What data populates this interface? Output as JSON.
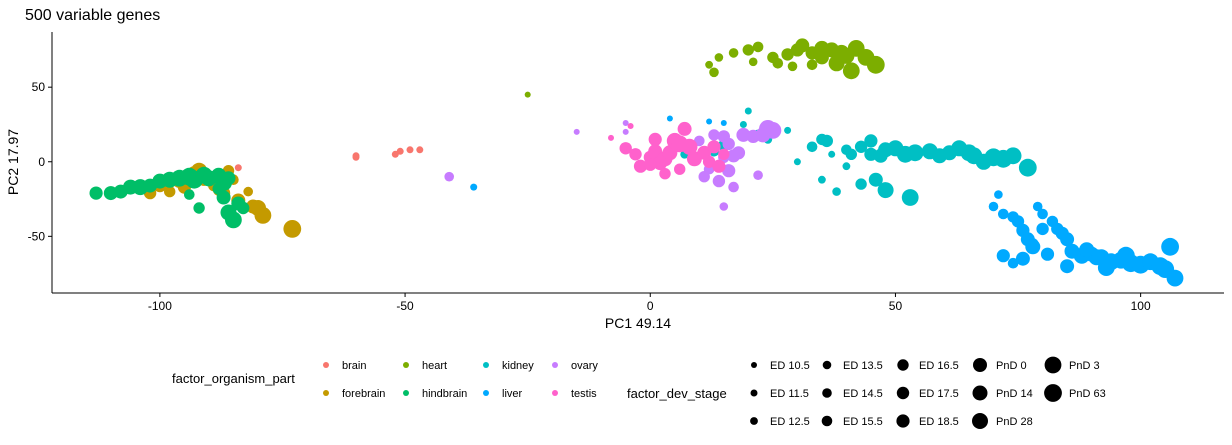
{
  "chart_data": {
    "type": "scatter",
    "title": "500  variable genes",
    "xlabel": "PC1 49.14",
    "ylabel": "PC2 17.97",
    "xlim": [
      -122,
      117
    ],
    "ylim": [
      -88,
      87
    ],
    "xticks": [
      -100,
      -50,
      0,
      50,
      100
    ],
    "yticks": [
      -50,
      0,
      50
    ],
    "xtick_labels": [
      "-100",
      "-50",
      "0",
      "50",
      "100"
    ],
    "ytick_labels": [
      "-50",
      "0",
      "50"
    ],
    "grid": false,
    "color_legend": {
      "title": "factor_organism_part",
      "entries": [
        {
          "name": "brain",
          "color": "#F8766D"
        },
        {
          "name": "forebrain",
          "color": "#C49A00"
        },
        {
          "name": "heart",
          "color": "#7CAE00"
        },
        {
          "name": "hindbrain",
          "color": "#00BE67"
        },
        {
          "name": "kidney",
          "color": "#00BFC4"
        },
        {
          "name": "liver",
          "color": "#00A9FF"
        },
        {
          "name": "ovary",
          "color": "#C77CFF"
        },
        {
          "name": "testis",
          "color": "#FF61CC"
        }
      ]
    },
    "size_legend": {
      "title": "factor_dev_stage",
      "entries": [
        "ED 10.5",
        "ED 11.5",
        "ED 12.5",
        "ED 13.5",
        "ED 14.5",
        "ED 15.5",
        "ED 16.5",
        "ED 17.5",
        "ED 18.5",
        "PnD 0",
        "PnD 14",
        "PnD 28",
        "PnD 3",
        "PnD 63"
      ]
    },
    "series": [
      {
        "name": "brain",
        "points": [
          [
            -60,
            3,
            1
          ],
          [
            -60,
            4,
            1
          ],
          [
            -52,
            5,
            1
          ],
          [
            -51,
            7,
            1
          ],
          [
            -49,
            8,
            1
          ],
          [
            -47,
            8,
            1
          ],
          [
            -84,
            -4,
            1
          ]
        ]
      },
      {
        "name": "heart",
        "points": [
          [
            -25,
            45,
            0
          ],
          [
            12,
            65,
            2
          ],
          [
            13,
            60,
            4
          ],
          [
            14,
            70,
            3
          ],
          [
            17,
            73,
            4
          ],
          [
            20,
            75,
            6
          ],
          [
            22,
            77,
            5
          ],
          [
            25,
            70,
            6
          ],
          [
            28,
            72,
            7
          ],
          [
            30,
            75,
            8
          ],
          [
            31,
            78,
            9
          ],
          [
            33,
            73,
            8
          ],
          [
            35,
            70,
            9
          ],
          [
            37,
            75,
            10
          ],
          [
            39,
            73,
            11
          ],
          [
            40,
            71,
            11
          ],
          [
            42,
            76,
            12
          ],
          [
            44,
            70,
            12
          ],
          [
            46,
            65,
            13
          ],
          [
            33,
            65,
            5
          ],
          [
            29,
            64,
            4
          ],
          [
            21,
            67,
            3
          ],
          [
            26,
            66,
            5
          ],
          [
            41,
            61,
            12
          ],
          [
            38,
            66,
            11
          ],
          [
            35,
            76,
            10
          ]
        ]
      },
      {
        "name": "forebrain",
        "points": [
          [
            -98,
            -20,
            6
          ],
          [
            -95,
            -17,
            8
          ],
          [
            -93,
            -8,
            10
          ],
          [
            -91,
            -12,
            7
          ],
          [
            -89,
            -16,
            6
          ],
          [
            -87,
            -21,
            8
          ],
          [
            -85,
            -12,
            5
          ],
          [
            -84,
            -26,
            9
          ],
          [
            -82,
            -20,
            4
          ],
          [
            -81,
            -30,
            9
          ],
          [
            -80,
            -31,
            11
          ],
          [
            -79,
            -36,
            12
          ],
          [
            -73,
            -45,
            13
          ],
          [
            -110,
            -20,
            5
          ],
          [
            -104,
            -17,
            6
          ],
          [
            -102,
            -21,
            7
          ],
          [
            -100,
            -16,
            8
          ],
          [
            -96,
            -13,
            9
          ],
          [
            -92,
            -6,
            11
          ],
          [
            -88,
            -19,
            6
          ],
          [
            -86,
            -6,
            6
          ]
        ]
      },
      {
        "name": "hindbrain",
        "points": [
          [
            -113,
            -21,
            8
          ],
          [
            -110,
            -21,
            9
          ],
          [
            -108,
            -20,
            9
          ],
          [
            -106,
            -17,
            10
          ],
          [
            -104,
            -17,
            11
          ],
          [
            -102,
            -16,
            9
          ],
          [
            -100,
            -13,
            10
          ],
          [
            -98,
            -12,
            11
          ],
          [
            -96,
            -11,
            12
          ],
          [
            -94,
            -10,
            13
          ],
          [
            -93,
            -12,
            13
          ],
          [
            -91,
            -9,
            12
          ],
          [
            -90,
            -11,
            11
          ],
          [
            -88,
            -9,
            10
          ],
          [
            -87,
            -14,
            12
          ],
          [
            -87,
            -24,
            9
          ],
          [
            -86,
            -34,
            11
          ],
          [
            -85,
            -39,
            12
          ],
          [
            -84,
            -28,
            9
          ],
          [
            -83,
            -31,
            7
          ],
          [
            -92,
            -31,
            6
          ],
          [
            -94,
            -22,
            5
          ],
          [
            -90,
            -12,
            8
          ],
          [
            -88,
            -18,
            7
          ],
          [
            -86,
            -11,
            9
          ]
        ]
      },
      {
        "name": "kidney",
        "points": [
          [
            7,
            8,
            3
          ],
          [
            7,
            5,
            3
          ],
          [
            11,
            5,
            4
          ],
          [
            13,
            7,
            5
          ],
          [
            15,
            11,
            6
          ],
          [
            19,
            25,
            1
          ],
          [
            20,
            34,
            1
          ],
          [
            22,
            18,
            5
          ],
          [
            24,
            15,
            3
          ],
          [
            28,
            21,
            1
          ],
          [
            30,
            0,
            1
          ],
          [
            33,
            10,
            5
          ],
          [
            35,
            15,
            6
          ],
          [
            36,
            14,
            7
          ],
          [
            37,
            5,
            1
          ],
          [
            40,
            8,
            5
          ],
          [
            41,
            5,
            6
          ],
          [
            43,
            10,
            7
          ],
          [
            45,
            14,
            8
          ],
          [
            45,
            5,
            8
          ],
          [
            47,
            4,
            9
          ],
          [
            48,
            8,
            10
          ],
          [
            50,
            9,
            11
          ],
          [
            52,
            5,
            12
          ],
          [
            54,
            6,
            12
          ],
          [
            57,
            7,
            11
          ],
          [
            59,
            4,
            10
          ],
          [
            61,
            6,
            10
          ],
          [
            63,
            9,
            11
          ],
          [
            65,
            6,
            12
          ],
          [
            66,
            4,
            12
          ],
          [
            68,
            0,
            11
          ],
          [
            70,
            3,
            13
          ],
          [
            72,
            2,
            13
          ],
          [
            74,
            4,
            12
          ],
          [
            77,
            -4,
            13
          ],
          [
            35,
            -12,
            2
          ],
          [
            38,
            -20,
            3
          ],
          [
            40,
            -3,
            2
          ],
          [
            43,
            -15,
            6
          ],
          [
            46,
            -12,
            9
          ],
          [
            48,
            -19,
            11
          ],
          [
            53,
            -24,
            12
          ]
        ]
      },
      {
        "name": "liver",
        "points": [
          [
            4,
            29,
            0
          ],
          [
            12,
            27,
            0
          ],
          [
            15,
            26,
            0
          ],
          [
            -36,
            -17,
            1
          ],
          [
            70,
            -30,
            4
          ],
          [
            71,
            -22,
            3
          ],
          [
            72,
            -35,
            5
          ],
          [
            74,
            -37,
            6
          ],
          [
            75,
            -40,
            7
          ],
          [
            76,
            -46,
            8
          ],
          [
            77,
            -52,
            9
          ],
          [
            78,
            -57,
            10
          ],
          [
            79,
            -30,
            4
          ],
          [
            80,
            -35,
            5
          ],
          [
            82,
            -40,
            6
          ],
          [
            83,
            -45,
            7
          ],
          [
            84,
            -48,
            8
          ],
          [
            85,
            -52,
            9
          ],
          [
            86,
            -60,
            10
          ],
          [
            88,
            -63,
            11
          ],
          [
            90,
            -62,
            10
          ],
          [
            92,
            -64,
            11
          ],
          [
            94,
            -67,
            12
          ],
          [
            96,
            -66,
            12
          ],
          [
            98,
            -68,
            13
          ],
          [
            100,
            -69,
            13
          ],
          [
            102,
            -67,
            12
          ],
          [
            104,
            -70,
            13
          ],
          [
            105,
            -72,
            13
          ],
          [
            107,
            -78,
            12
          ],
          [
            106,
            -57,
            13
          ],
          [
            97,
            -63,
            13
          ],
          [
            93,
            -71,
            12
          ],
          [
            91,
            -64,
            11
          ],
          [
            89,
            -59,
            10
          ],
          [
            85,
            -70,
            9
          ],
          [
            81,
            -62,
            8
          ],
          [
            80,
            -45,
            7
          ],
          [
            78,
            -55,
            6
          ],
          [
            74,
            -68,
            5
          ],
          [
            72,
            -63,
            8
          ],
          [
            76,
            -65,
            9
          ]
        ]
      },
      {
        "name": "ovary",
        "points": [
          [
            -15,
            20,
            0
          ],
          [
            -5,
            20,
            0
          ],
          [
            -5,
            26,
            0
          ],
          [
            -41,
            -10,
            4
          ],
          [
            10,
            14,
            5
          ],
          [
            13,
            18,
            6
          ],
          [
            15,
            17,
            7
          ],
          [
            16,
            12,
            7
          ],
          [
            17,
            4,
            8
          ],
          [
            18,
            6,
            8
          ],
          [
            15,
            3,
            6
          ],
          [
            16,
            -6,
            8
          ],
          [
            14,
            -13,
            7
          ],
          [
            11,
            -10,
            6
          ],
          [
            12,
            -5,
            5
          ],
          [
            17,
            -17,
            5
          ],
          [
            15,
            -30,
            3
          ],
          [
            24,
            22,
            13
          ],
          [
            25,
            21,
            12
          ],
          [
            23,
            18,
            10
          ],
          [
            19,
            18,
            9
          ],
          [
            22,
            -9,
            4
          ],
          [
            21,
            17,
            8
          ]
        ]
      },
      {
        "name": "testis",
        "points": [
          [
            -5,
            9,
            7
          ],
          [
            -3,
            5,
            7
          ],
          [
            -2,
            -3,
            8
          ],
          [
            0,
            3,
            8
          ],
          [
            1,
            7,
            9
          ],
          [
            2,
            -1,
            9
          ],
          [
            3,
            2,
            10
          ],
          [
            4,
            6,
            10
          ],
          [
            5,
            14,
            11
          ],
          [
            6,
            12,
            12
          ],
          [
            7,
            22,
            9
          ],
          [
            8,
            10,
            11
          ],
          [
            9,
            2,
            10
          ],
          [
            11,
            6,
            9
          ],
          [
            12,
            0,
            7
          ],
          [
            14,
            -3,
            8
          ],
          [
            13,
            10,
            8
          ],
          [
            -8,
            16,
            0
          ],
          [
            -4,
            24,
            0
          ],
          [
            15,
            5,
            6
          ],
          [
            6,
            -5,
            6
          ],
          [
            3,
            -8,
            6
          ],
          [
            0,
            -2,
            7
          ],
          [
            1,
            15,
            8
          ]
        ]
      }
    ]
  }
}
